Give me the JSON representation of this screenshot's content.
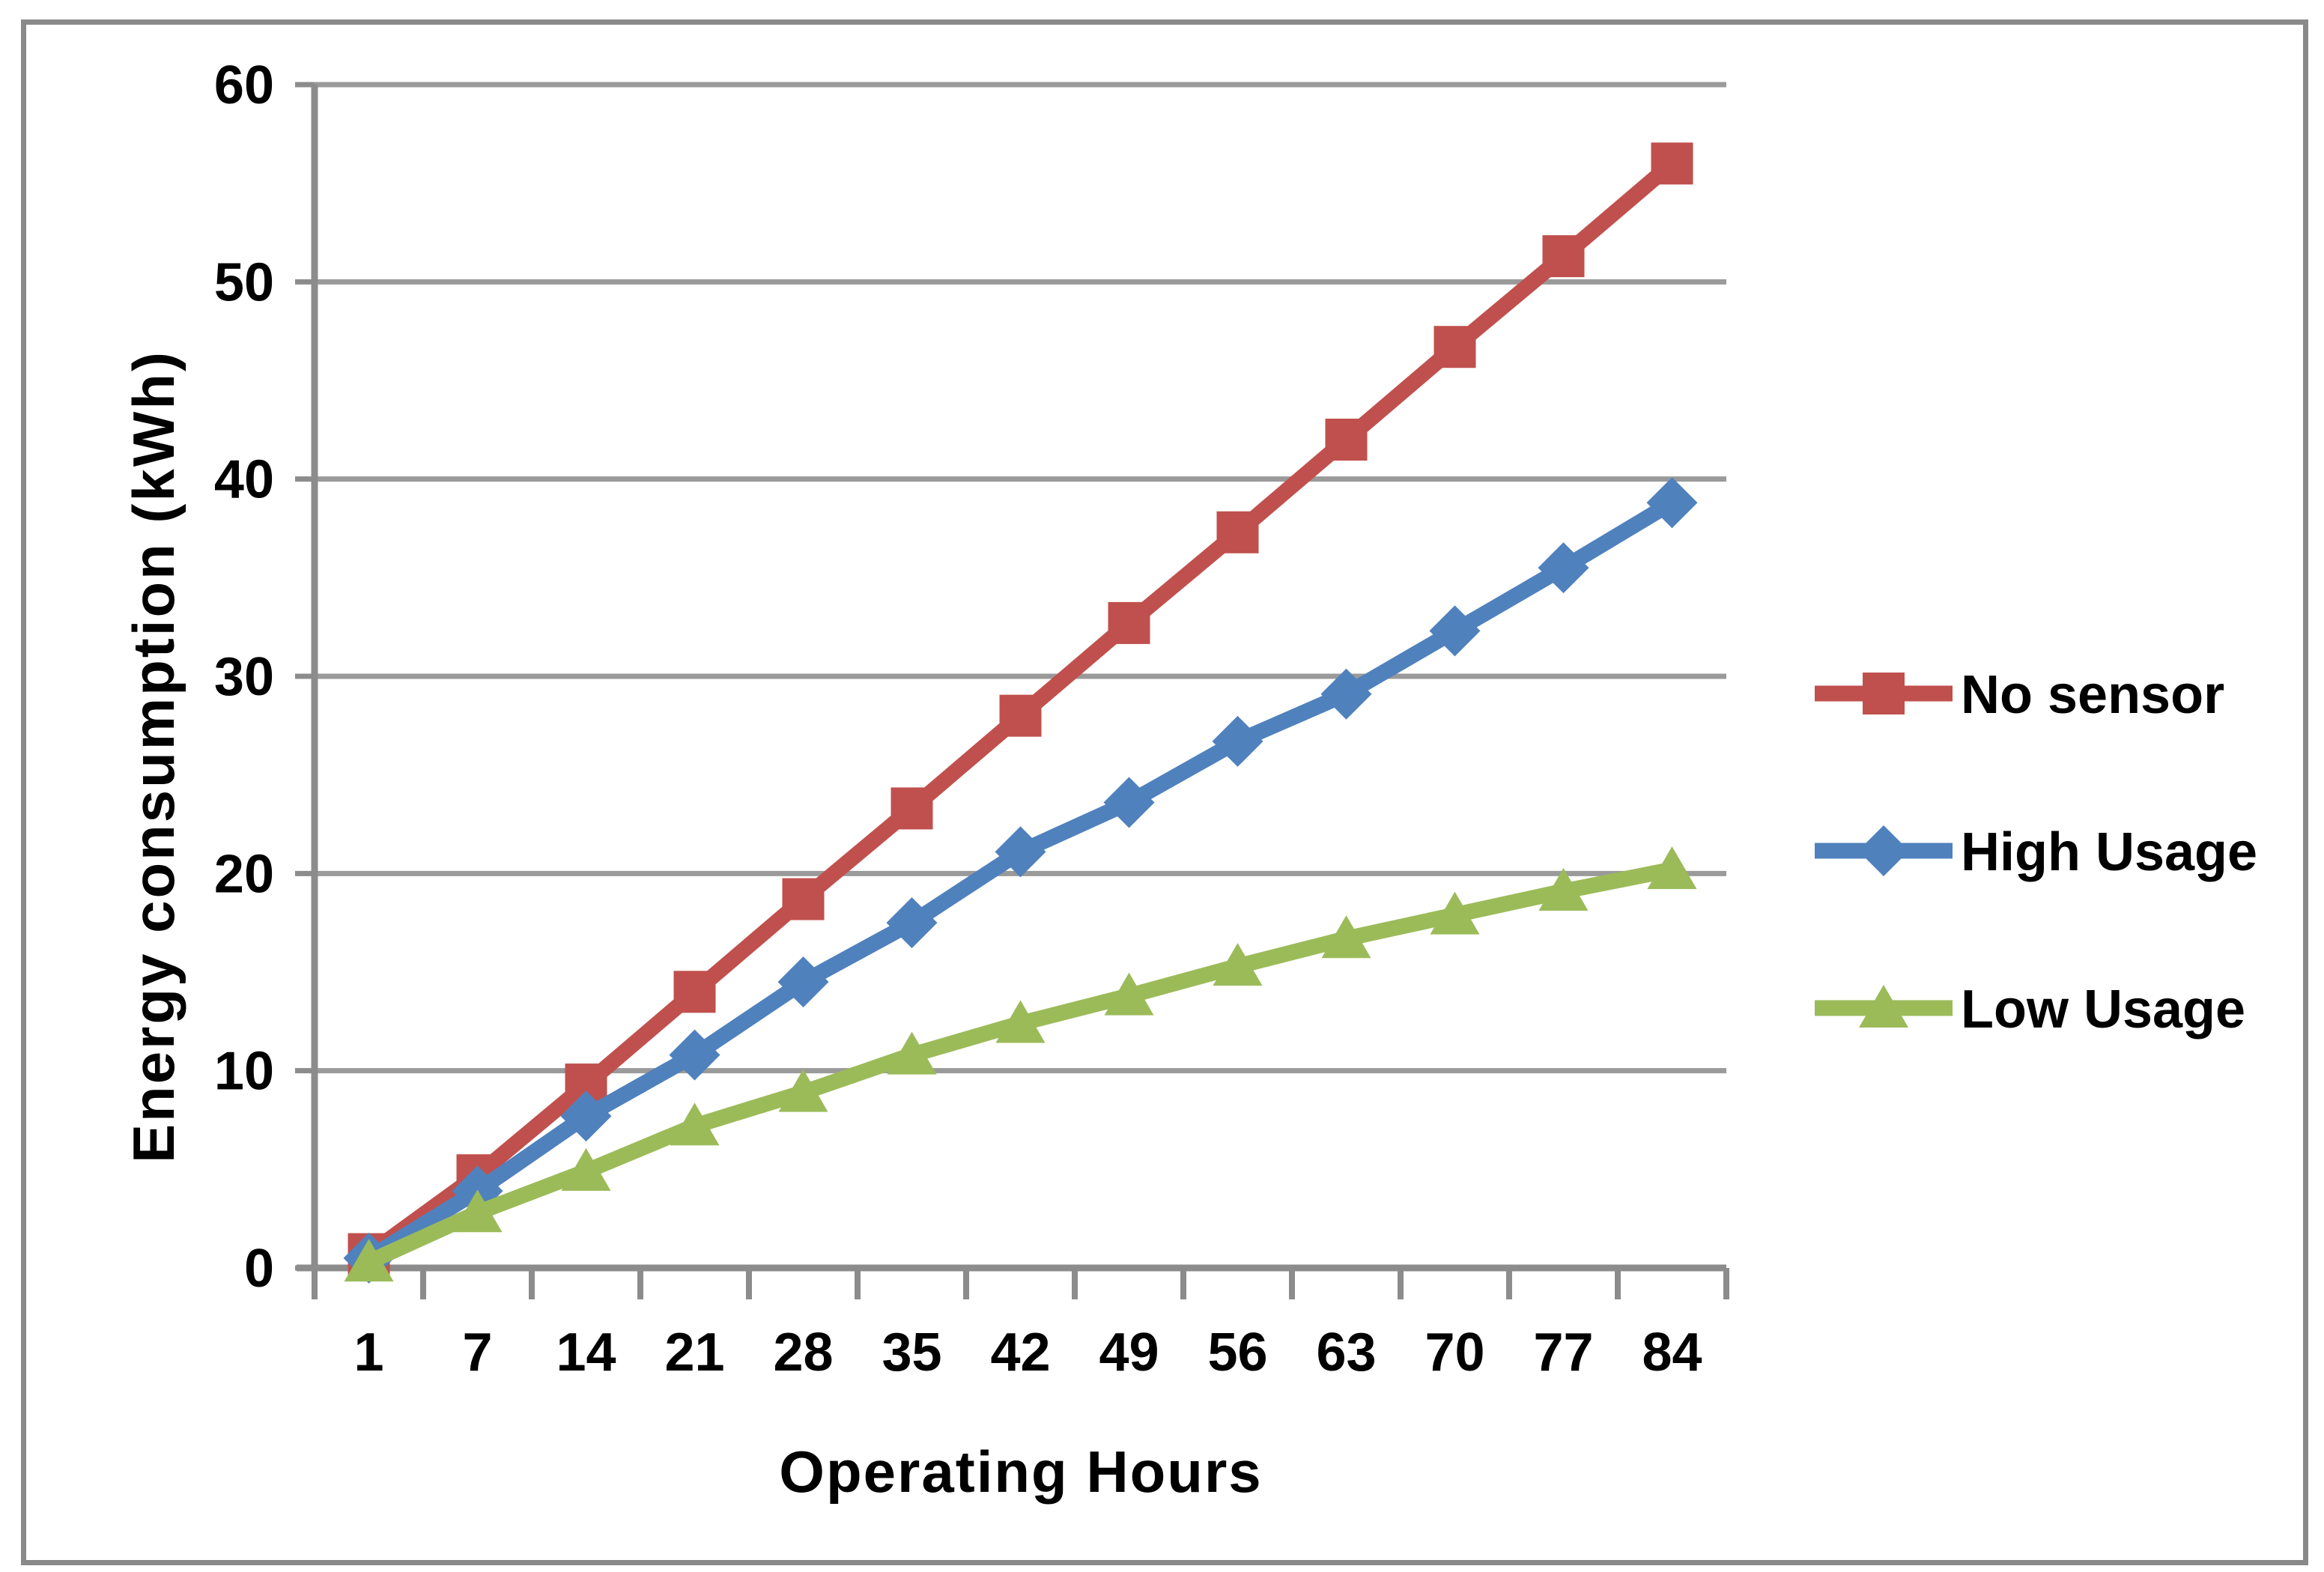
{
  "chart_data": {
    "type": "line",
    "title": "",
    "xlabel": "Operating Hours",
    "ylabel": "Energy consumption (kWh)",
    "categories": [
      1,
      7,
      14,
      21,
      28,
      35,
      42,
      49,
      56,
      63,
      70,
      77,
      84
    ],
    "series": [
      {
        "name": "No sensor",
        "marker": "square",
        "color": "#C0504D",
        "values": [
          0.7,
          4.7,
          9.3,
          14.0,
          18.7,
          23.3,
          28.0,
          32.7,
          37.3,
          42.0,
          46.7,
          51.3,
          56.0
        ]
      },
      {
        "name": "High Usage",
        "marker": "diamond",
        "color": "#4F81BD",
        "values": [
          0.5,
          3.9,
          7.7,
          10.8,
          14.5,
          17.5,
          21.1,
          23.6,
          26.7,
          29.1,
          32.3,
          35.5,
          38.8
        ]
      },
      {
        "name": "Low Usage",
        "marker": "triangle",
        "color": "#9BBB59",
        "values": [
          0.3,
          2.8,
          4.9,
          7.2,
          8.9,
          10.8,
          12.4,
          13.8,
          15.3,
          16.7,
          17.9,
          19.1,
          20.2
        ]
      }
    ],
    "ylim": [
      0,
      60
    ],
    "yticks": [
      0,
      10,
      20,
      30,
      40,
      50,
      60
    ],
    "grid": "horizontal",
    "legend_position": "right"
  },
  "colors": {
    "gridline": "#9A9A9A",
    "axis": "#8C8C8C",
    "frame_border": "#898989",
    "text": "#000000",
    "background": "#FFFFFF"
  }
}
